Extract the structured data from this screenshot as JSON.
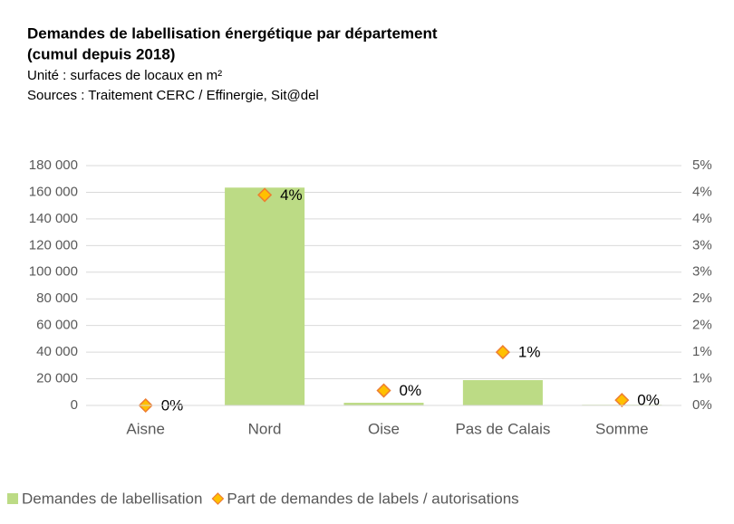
{
  "chart_data": {
    "type": "bar",
    "title": [
      "Demandes de labellisation énergétique par département",
      "(cumul depuis 2018)"
    ],
    "subtitle": [
      "Unité : surfaces de locaux en m²",
      "Sources : Traitement CERC / Effinergie, Sit@del"
    ],
    "categories": [
      "Aisne",
      "Nord",
      "Oise",
      "Pas de Calais",
      "Somme"
    ],
    "series": [
      {
        "name": "Demandes de labellisation",
        "type": "bar",
        "color": "#bcdb85",
        "values": [
          0,
          163500,
          2000,
          19000,
          500
        ]
      },
      {
        "name": "Part de demandes de labels / autorisations",
        "type": "marker",
        "axis": "y2",
        "color": "#ffc000",
        "edge": "#ed7d31",
        "values": [
          0,
          3.95,
          0.28,
          1.0,
          0.1
        ],
        "value_labels": [
          "0%",
          "4%",
          "0%",
          "1%",
          "0%"
        ]
      }
    ],
    "ylim": [
      0,
      180000
    ],
    "yticks": [
      {
        "value": 0,
        "label": "0"
      },
      {
        "value": 20000,
        "label": "20 000"
      },
      {
        "value": 40000,
        "label": "40 000"
      },
      {
        "value": 60000,
        "label": "60 000"
      },
      {
        "value": 80000,
        "label": "80 000"
      },
      {
        "value": 100000,
        "label": "100 000"
      },
      {
        "value": 120000,
        "label": "120 000"
      },
      {
        "value": 140000,
        "label": "140 000"
      },
      {
        "value": 160000,
        "label": "160 000"
      },
      {
        "value": 180000,
        "label": "180 000"
      }
    ],
    "y2lim": [
      0,
      4.5
    ],
    "y2ticks": [
      {
        "value": 0,
        "label": "0%"
      },
      {
        "value": 0.5,
        "label": "1%"
      },
      {
        "value": 1,
        "label": "1%"
      },
      {
        "value": 1.5,
        "label": "2%"
      },
      {
        "value": 2,
        "label": "2%"
      },
      {
        "value": 2.5,
        "label": "3%"
      },
      {
        "value": 3,
        "label": "3%"
      },
      {
        "value": 3.5,
        "label": "4%"
      },
      {
        "value": 4,
        "label": "4%"
      },
      {
        "value": 4.5,
        "label": "5%"
      }
    ],
    "grid": true,
    "legend": "bottom"
  }
}
